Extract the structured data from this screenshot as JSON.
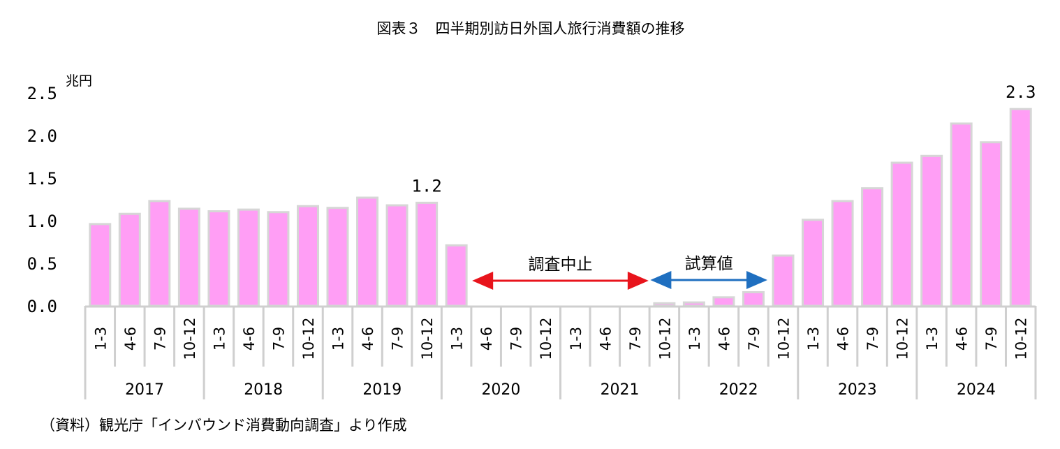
{
  "chart_data": {
    "type": "bar",
    "title": "図表３　四半期別訪日外国人旅行消費額の推移",
    "unit_label": "兆円",
    "ylim": [
      0,
      2.5
    ],
    "y_ticks": [
      "0.0",
      "0.5",
      "1.0",
      "1.5",
      "2.0",
      "2.5"
    ],
    "years": [
      "2017",
      "2018",
      "2019",
      "2020",
      "2021",
      "2022",
      "2023",
      "2024"
    ],
    "quarters": [
      "1-3",
      "4-6",
      "7-9",
      "10-12"
    ],
    "categories": [
      "2017 1-3",
      "2017 4-6",
      "2017 7-9",
      "2017 10-12",
      "2018 1-3",
      "2018 4-6",
      "2018 7-9",
      "2018 10-12",
      "2019 1-3",
      "2019 4-6",
      "2019 7-9",
      "2019 10-12",
      "2020 1-3",
      "2020 4-6",
      "2020 7-9",
      "2020 10-12",
      "2021 1-3",
      "2021 4-6",
      "2021 7-9",
      "2021 10-12",
      "2022 1-3",
      "2022 4-6",
      "2022 7-9",
      "2022 10-12",
      "2023 1-3",
      "2023 4-6",
      "2023 7-9",
      "2023 10-12",
      "2024 1-3",
      "2024 4-6",
      "2024 7-9",
      "2024 10-12"
    ],
    "values": [
      0.96,
      1.08,
      1.23,
      1.14,
      1.11,
      1.13,
      1.1,
      1.17,
      1.15,
      1.27,
      1.18,
      1.21,
      0.71,
      null,
      null,
      null,
      null,
      null,
      null,
      0.03,
      0.04,
      0.1,
      0.16,
      0.59,
      1.01,
      1.23,
      1.38,
      1.68,
      1.76,
      2.14,
      1.92,
      2.31
    ],
    "data_labels": [
      {
        "index": 11,
        "text": "1.2"
      },
      {
        "index": 31,
        "text": "2.3"
      }
    ],
    "annotations": {
      "survey_suspended": {
        "text": "調査中止",
        "from_index": 13,
        "to_index": 18,
        "color": "#e8141c"
      },
      "estimate": {
        "text": "試算値",
        "from_index": 19,
        "to_index": 22,
        "color": "#1f6fc0"
      }
    },
    "bar_color": "#ff9ef5",
    "bar_edge_color": "#d6d6d6",
    "grid": false,
    "legend": "none",
    "source": "（資料）観光庁「インバウンド消費動向調査」より作成"
  }
}
